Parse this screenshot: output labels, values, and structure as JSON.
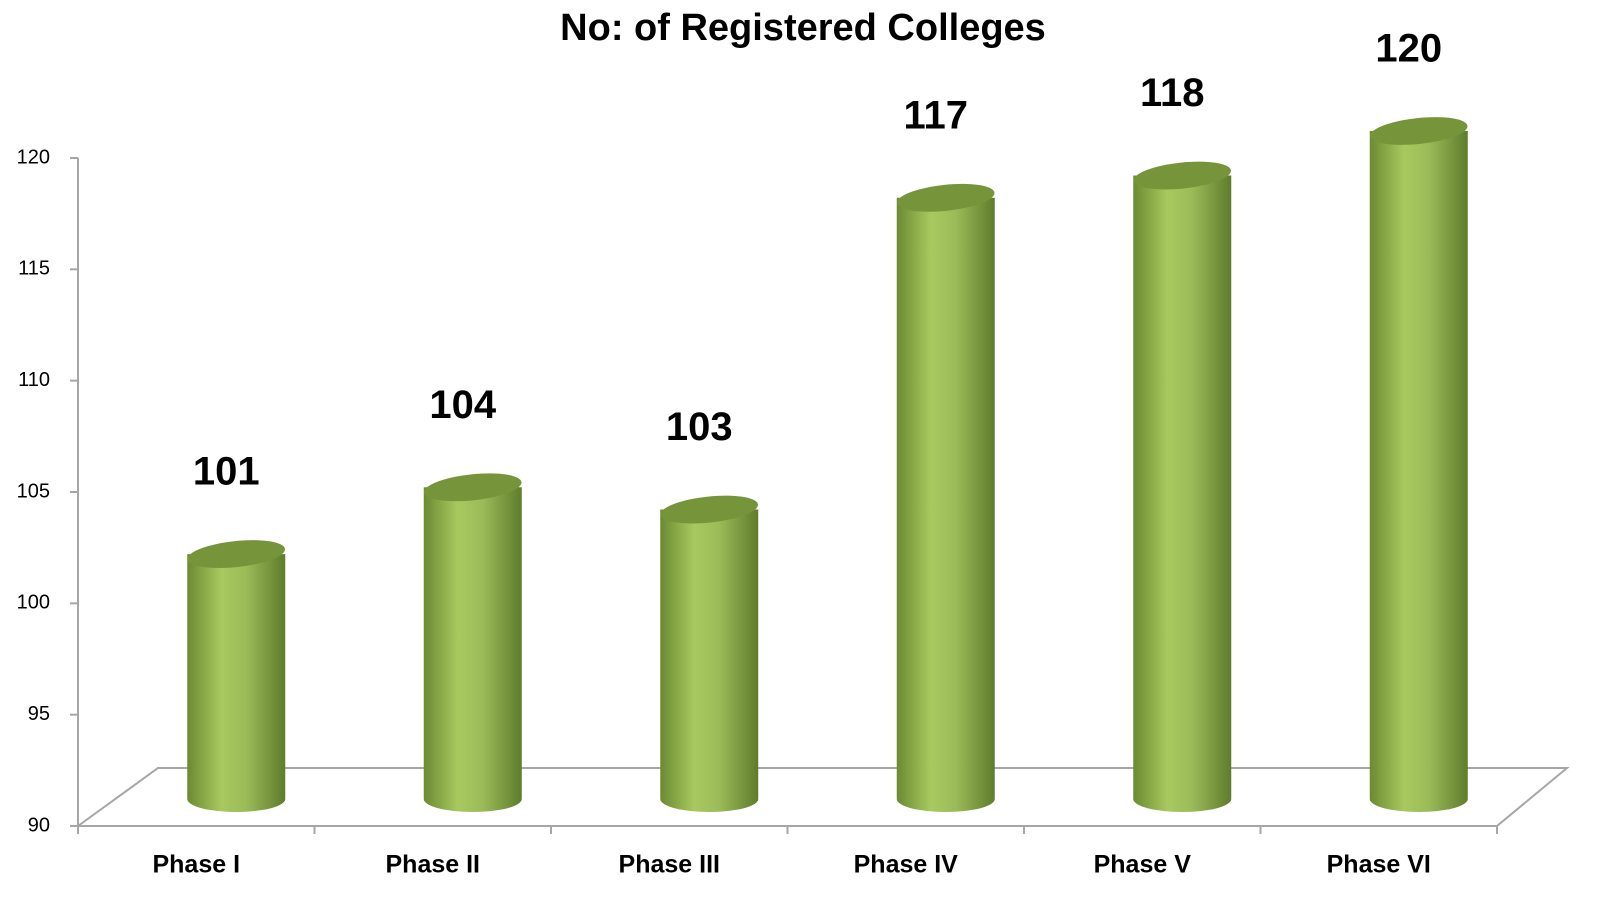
{
  "chart_data": {
    "type": "bar",
    "title": "No: of Registered Colleges",
    "categories": [
      "Phase I",
      "Phase II",
      "Phase III",
      "Phase IV",
      "Phase V",
      "Phase VI"
    ],
    "values": [
      101,
      104,
      103,
      117,
      118,
      120
    ],
    "color": "#9bbb59",
    "ylim": [
      90,
      120
    ],
    "yticks": [
      90,
      95,
      100,
      105,
      110,
      115,
      120
    ],
    "grid": false
  }
}
